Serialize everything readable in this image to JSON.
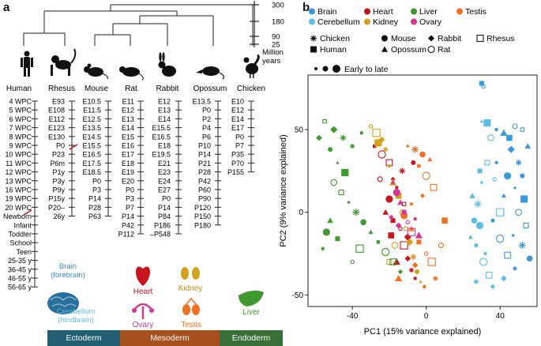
{
  "panel_a": {
    "letter": "a",
    "scale_ticks": [
      "300",
      "180",
      "90",
      "25"
    ],
    "scale_unit": [
      "Million",
      "years"
    ],
    "species": [
      "Human",
      "Rhesus",
      "Mouse",
      "Rat",
      "Rabbit",
      "Opossum",
      "Chicken"
    ],
    "timelines": {
      "Human": [
        "4 WPC",
        "5 WPC",
        "6 WPC",
        "7 WPC",
        "8 WPC",
        "9 WPC",
        "10 WPC",
        "11 WPC",
        "12 WPC",
        "13 WPC",
        "16 WPC",
        "19 WPC",
        "20 WPC",
        "Newborn",
        "Infant",
        "Toddler",
        "School",
        "Teen",
        "25-35 y",
        "36-45 y",
        "46-55 y",
        "56-65 y"
      ],
      "Rhesus": [
        "E93",
        "E108",
        "E112",
        "E123",
        "E130",
        "P0",
        "P23",
        "P6m",
        "P1y",
        "P3y",
        "P9y",
        "P15y",
        "P20–",
        "26y"
      ],
      "Mouse": [
        "E10.5",
        "E11.5",
        "E12.5",
        "E13.5",
        "E14.5",
        "E15.5",
        "E16.5",
        "E17.5",
        "E18.5",
        "P0",
        "P3",
        "P14",
        "P28",
        "P63"
      ],
      "Rat": [
        "E11",
        "E12",
        "E13",
        "E14",
        "E15",
        "E16",
        "E17",
        "E18",
        "E19",
        "E20",
        "P0",
        "P3",
        "P7",
        "P14",
        "P42",
        "P112"
      ],
      "Rabbit": [
        "E12",
        "E13",
        "E14",
        "E15.5",
        "E16.5",
        "E18",
        "E19.5",
        "E21",
        "E23",
        "E24",
        "E27",
        "P0",
        "P14",
        "P84",
        "P186",
        "–P548"
      ],
      "Opossum": [
        "E13.5",
        "P0",
        "P2",
        "P4",
        "P6",
        "P10",
        "P14",
        "P21",
        "P28",
        "P42",
        "P60",
        "P90",
        "P120",
        "P150",
        "P180"
      ],
      "Chicken": [
        "E10",
        "E12",
        "E14",
        "E17",
        "P0",
        "P7",
        "P35",
        "P70",
        "P155"
      ]
    },
    "organs": {
      "brain": [
        "Brain",
        "(forebrain)"
      ],
      "cerebellum": [
        "Cerebellum",
        "(hindbrain)"
      ],
      "heart": "Heart",
      "kidney": "Kidney",
      "ovary": "Ovary",
      "testis": "Testis",
      "liver": "Liver"
    },
    "germ_layers": [
      "Ectoderm",
      "Mesoderm",
      "Endoderm"
    ]
  },
  "panel_b": {
    "letter": "b",
    "organ_legend": [
      {
        "name": "Brain",
        "color": "#3a99d8"
      },
      {
        "name": "Heart",
        "color": "#c4161c"
      },
      {
        "name": "Liver",
        "color": "#3e9a2f"
      },
      {
        "name": "Testis",
        "color": "#f36f21"
      },
      {
        "name": "Cerebellum",
        "color": "#5cbde6"
      },
      {
        "name": "Kidney",
        "color": "#d4a11e"
      },
      {
        "name": "Ovary",
        "color": "#d03996"
      }
    ],
    "species_legend": [
      {
        "name": "Chicken",
        "symbol": "asterisk"
      },
      {
        "name": "Mouse",
        "symbol": "filled-circle"
      },
      {
        "name": "Rabbit",
        "symbol": "filled-diamond"
      },
      {
        "name": "Rhesus",
        "symbol": "open-square"
      },
      {
        "name": "Human",
        "symbol": "filled-square"
      },
      {
        "name": "Opossum",
        "symbol": "filled-triangle"
      },
      {
        "name": "Rat",
        "symbol": "open-circle"
      }
    ],
    "size_legend": "Early to late"
  },
  "chart_data": {
    "type": "scatter",
    "xlabel": "PC1 (15% variance explained)",
    "ylabel": "PC2 (9% variance explained)",
    "xlim": [
      -64,
      60
    ],
    "ylim": [
      -57,
      83
    ],
    "xticks": [
      -40,
      0,
      40
    ],
    "yticks": [
      -50,
      0,
      50
    ],
    "grid": false,
    "series": [
      {
        "name": "Brain",
        "color": "#3a99d8",
        "points": [
          [
            38,
            50
          ],
          [
            42,
            48
          ],
          [
            45,
            45
          ],
          [
            48,
            52
          ],
          [
            52,
            50
          ],
          [
            46,
            38
          ],
          [
            50,
            30
          ],
          [
            52,
            22
          ],
          [
            48,
            15
          ],
          [
            53,
            8
          ],
          [
            50,
            0
          ],
          [
            54,
            -8
          ],
          [
            47,
            -14
          ],
          [
            52,
            -20
          ],
          [
            56,
            -28
          ],
          [
            42,
            10
          ],
          [
            36,
            -5
          ],
          [
            40,
            -16
          ],
          [
            44,
            -26
          ],
          [
            48,
            -34
          ],
          [
            38,
            30
          ],
          [
            44,
            22
          ],
          [
            55,
            40
          ],
          [
            30,
            78
          ],
          [
            31,
            76
          ]
        ]
      },
      {
        "name": "Cerebellum",
        "color": "#5cbde6",
        "points": [
          [
            30,
            55
          ],
          [
            33,
            54
          ],
          [
            35,
            45
          ],
          [
            33,
            30
          ],
          [
            30,
            18
          ],
          [
            28,
            5
          ],
          [
            26,
            -5
          ],
          [
            24,
            -15
          ],
          [
            27,
            -20
          ],
          [
            31,
            -30
          ],
          [
            34,
            -38
          ],
          [
            36,
            -45
          ],
          [
            32,
            -25
          ],
          [
            29,
            -8
          ],
          [
            25,
            10
          ],
          [
            29,
            25
          ],
          [
            37,
            20
          ],
          [
            40,
            0
          ],
          [
            42,
            -40
          ],
          [
            27,
            -42
          ]
        ]
      },
      {
        "name": "Heart",
        "color": "#c4161c",
        "points": [
          [
            -28,
            40
          ],
          [
            -24,
            35
          ],
          [
            -20,
            30
          ],
          [
            -18,
            20
          ],
          [
            -16,
            15
          ],
          [
            -20,
            8
          ],
          [
            -22,
            0
          ],
          [
            -18,
            -5
          ],
          [
            -14,
            -10
          ],
          [
            -12,
            -20
          ],
          [
            -10,
            -28
          ],
          [
            -8,
            -35
          ],
          [
            -6,
            -40
          ],
          [
            -16,
            -30
          ],
          [
            -19,
            -14
          ],
          [
            -25,
            20
          ],
          [
            -12,
            5
          ],
          [
            -10,
            -15
          ],
          [
            -13,
            25
          ],
          [
            -7,
            30
          ]
        ]
      },
      {
        "name": "Kidney",
        "color": "#d4a11e",
        "points": [
          [
            -30,
            52
          ],
          [
            -27,
            48
          ],
          [
            -24,
            44
          ],
          [
            -22,
            38
          ],
          [
            -20,
            28
          ],
          [
            -18,
            18
          ],
          [
            -15,
            10
          ],
          [
            -13,
            0
          ],
          [
            -11,
            -10
          ],
          [
            -9,
            -18
          ],
          [
            -7,
            -27
          ],
          [
            -5,
            -36
          ],
          [
            -3,
            -42
          ],
          [
            -26,
            42
          ],
          [
            -17,
            -20
          ],
          [
            -20,
            -30
          ]
        ]
      },
      {
        "name": "Liver",
        "color": "#3e9a2f",
        "points": [
          [
            -55,
            55
          ],
          [
            -50,
            50
          ],
          [
            -45,
            45
          ],
          [
            -52,
            38
          ],
          [
            -48,
            30
          ],
          [
            -44,
            24
          ],
          [
            -50,
            18
          ],
          [
            -46,
            12
          ],
          [
            -42,
            6
          ],
          [
            -38,
            0
          ],
          [
            -34,
            -6
          ],
          [
            -30,
            -12
          ],
          [
            -26,
            -18
          ],
          [
            -22,
            -24
          ],
          [
            -18,
            -30
          ],
          [
            -14,
            -36
          ],
          [
            -56,
            -22
          ],
          [
            -54,
            -12
          ],
          [
            -52,
            -5
          ],
          [
            -48,
            -16
          ],
          [
            -40,
            -30
          ],
          [
            -36,
            -22
          ],
          [
            -58,
            45
          ],
          [
            -40,
            40
          ],
          [
            -35,
            48
          ]
        ]
      },
      {
        "name": "Testis",
        "color": "#f36f21",
        "points": [
          [
            -10,
            40
          ],
          [
            -6,
            38
          ],
          [
            -2,
            35
          ],
          [
            2,
            32
          ],
          [
            -4,
            28
          ],
          [
            0,
            22
          ],
          [
            4,
            15
          ],
          [
            -2,
            10
          ],
          [
            -8,
            5
          ],
          [
            -12,
            -2
          ],
          [
            -8,
            -10
          ],
          [
            -4,
            -18
          ],
          [
            0,
            -25
          ],
          [
            3,
            -30
          ],
          [
            -6,
            -32
          ],
          [
            5,
            -40
          ],
          [
            -1,
            -45
          ],
          [
            -15,
            -40
          ],
          [
            10,
            -5
          ],
          [
            8,
            -20
          ]
        ]
      },
      {
        "name": "Ovary",
        "color": "#d03996",
        "points": [
          [
            -18,
            18
          ],
          [
            -16,
            12
          ],
          [
            -14,
            6
          ],
          [
            -12,
            0
          ],
          [
            -10,
            -6
          ],
          [
            -8,
            -12
          ],
          [
            -15,
            -8
          ],
          [
            -19,
            -3
          ],
          [
            -6,
            -4
          ],
          [
            -4,
            -14
          ]
        ]
      }
    ]
  }
}
